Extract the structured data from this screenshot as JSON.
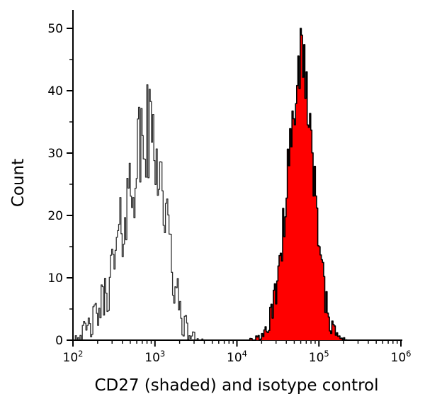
{
  "chart_data": {
    "type": "area",
    "subtype": "flow cytometry histogram overlay",
    "title": "",
    "xlabel": "CD27 (shaded) and isotype control",
    "ylabel": "Count",
    "x_scale": "log",
    "x_range_log": [
      2,
      6
    ],
    "ylim": [
      0,
      50
    ],
    "x_tick_exponents": [
      2,
      3,
      4,
      5,
      6
    ],
    "y_ticks": [
      0,
      10,
      20,
      30,
      40,
      50
    ],
    "y_minor_step": 5,
    "grid": false,
    "legend": "none",
    "bins_per_decade": 70,
    "series": [
      {
        "name": "isotype control",
        "style": "open",
        "stroke": "#2e2e2e",
        "fill": "none",
        "peak_center": 900,
        "peak_center_log": 2.95,
        "sigma_left_log": 0.32,
        "sigma_right_log": 0.18,
        "peak_height": 33,
        "max_observed": 41,
        "noise": 1.5,
        "seed": 42
      },
      {
        "name": "CD27",
        "style": "shaded",
        "stroke": "#000000",
        "fill": "#ff0000",
        "peak_center": 62000,
        "peak_center_log": 4.79,
        "sigma_left_log": 0.17,
        "sigma_right_log": 0.15,
        "peak_height": 45,
        "max_observed": 50,
        "noise": 1.0,
        "seed": 9
      }
    ]
  }
}
